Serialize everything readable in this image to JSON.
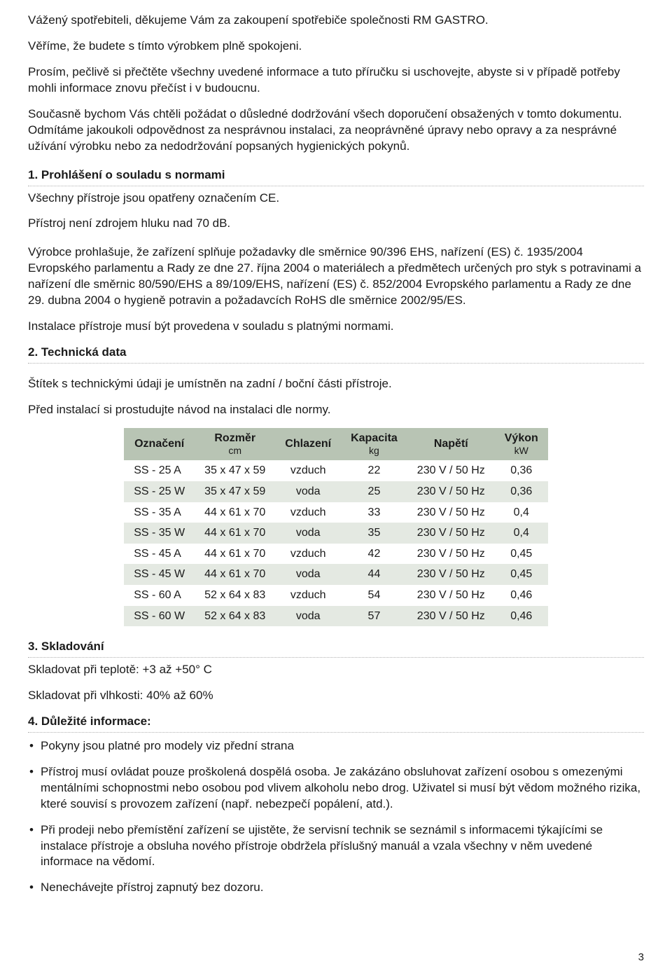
{
  "intro": {
    "p1": "Vážený spotřebiteli, děkujeme Vám za zakoupení spotřebiče společnosti RM GASTRO.",
    "p2": "Věříme, že budete s tímto výrobkem plně spokojeni.",
    "p3": "Prosím, pečlivě si přečtěte všechny uvedené informace a tuto příručku si uschovejte, abyste si v případě potřeby mohli informace znovu přečíst i v budoucnu.",
    "p4": "Současně bychom Vás chtěli požádat o důsledné dodržování všech doporučení obsažených v tomto dokumentu. Odmítáme jakoukoli odpovědnost za nesprávnou instalaci, za neoprávněné úpravy nebo opravy a za nesprávné užívání výrobku nebo za nedodržování popsaných hygienických pokynů."
  },
  "s1": {
    "title": "1.  Prohlášení o souladu s normami",
    "l1": "Všechny přístroje jsou opatřeny označením CE.",
    "l2": "Přístroj není zdrojem hluku nad 70 dB.",
    "l3": "Výrobce prohlašuje, že zařízení splňuje požadavky dle směrnice 90/396 EHS, nařízení (ES) č. 1935/2004 Evropského parlamentu a Rady ze dne 27. října 2004 o materiálech a předmětech určených pro styk s potravinami a nařízení dle směrnic 80/590/EHS a 89/109/EHS, nařízení (ES) č. 852/2004 Evropského parlamentu a Rady ze dne 29. dubna 2004 o hygieně potravin a požadavcích RoHS dle směrnice 2002/95/ES.",
    "l4": "Instalace přístroje musí být provedena v souladu s platnými normami."
  },
  "s2": {
    "title": "2.  Technická data",
    "l1": "Štítek s technickými údaji je umístněn na zadní / boční části přístroje.",
    "l2": "Před instalací si prostudujte návod na instalaci dle normy."
  },
  "table": {
    "header_bg": "#b8c4b4",
    "row_alt_bg": "#e4e9e2",
    "columns": [
      {
        "label": "Označení",
        "sub": ""
      },
      {
        "label": "Rozměr",
        "sub": "cm"
      },
      {
        "label": "Chlazení",
        "sub": ""
      },
      {
        "label": "Kapacita",
        "sub": "kg"
      },
      {
        "label": "Napětí",
        "sub": ""
      },
      {
        "label": "Výkon",
        "sub": "kW"
      }
    ],
    "rows": [
      [
        "SS - 25 A",
        "35 x 47 x 59",
        "vzduch",
        "22",
        "230 V / 50 Hz",
        "0,36"
      ],
      [
        "SS - 25 W",
        "35 x 47 x 59",
        "voda",
        "25",
        "230 V / 50 Hz",
        "0,36"
      ],
      [
        "SS - 35 A",
        "44 x 61 x 70",
        "vzduch",
        "33",
        "230 V / 50 Hz",
        "0,4"
      ],
      [
        "SS - 35 W",
        "44 x 61 x 70",
        "voda",
        "35",
        "230 V / 50 Hz",
        "0,4"
      ],
      [
        "SS - 45 A",
        "44 x 61 x 70",
        "vzduch",
        "42",
        "230 V / 50 Hz",
        "0,45"
      ],
      [
        "SS - 45 W",
        "44 x 61 x 70",
        "voda",
        "44",
        "230 V / 50 Hz",
        "0,45"
      ],
      [
        "SS - 60 A",
        "52 x 64 x 83",
        "vzduch",
        "54",
        "230 V / 50 Hz",
        "0,46"
      ],
      [
        "SS - 60 W",
        "52 x 64 x 83",
        "voda",
        "57",
        "230 V / 50 Hz",
        "0,46"
      ]
    ]
  },
  "s3": {
    "title": "3.  Skladování",
    "l1": "Skladovat při teplotě: +3 až +50° C",
    "l2": "Skladovat při vlhkosti:  40% až 60%"
  },
  "s4": {
    "title": "4.  Důležité informace:",
    "b1": "Pokyny jsou platné pro modely viz přední strana",
    "b2": "Přístroj musí ovládat pouze proškolená dospělá osoba. Je zakázáno obsluhovat zařízení osobou s omezenými mentálními schopnostmi nebo osobou pod vlivem alkoholu nebo drog. Uživatel si musí být vědom možného rizika, které souvisí s provozem zařízení (např. nebezpečí popálení, atd.).",
    "b3": "Při prodeji nebo přemístění zařízení se ujistěte, že servisní technik se seznámil s informacemi týkajícími se instalace přístroje a obsluha nového přístroje obdržela příslušný manuál a vzala všechny v něm uvedené informace na vědomí.",
    "b4": "Nenechávejte přístroj zapnutý bez dozoru."
  },
  "page_number": "3"
}
